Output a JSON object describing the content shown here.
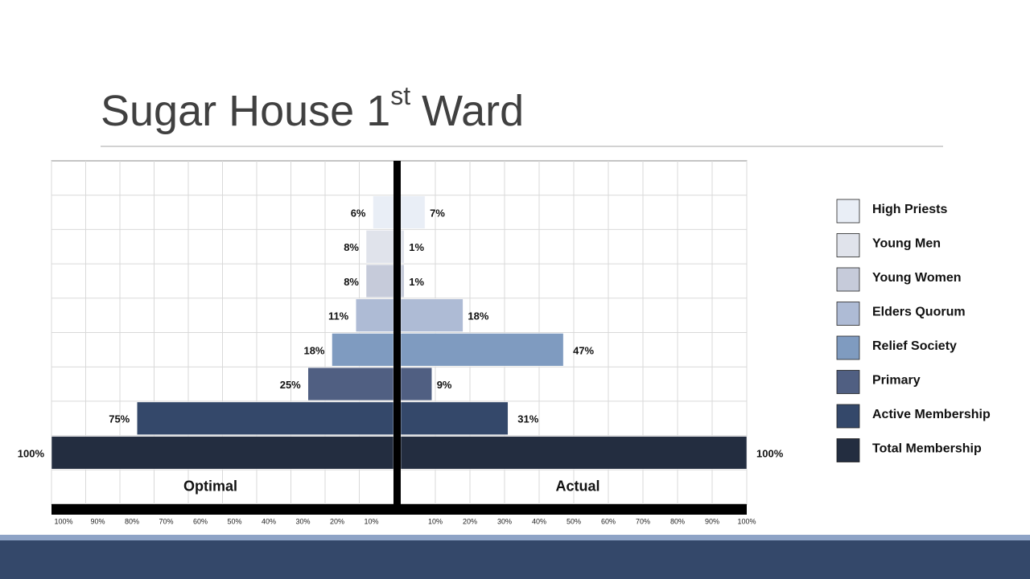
{
  "chart_data": {
    "type": "butterfly",
    "title": {
      "text": "Sugar House 1",
      "superscript": "st",
      "suffix": "Ward"
    },
    "categories": [
      "High Priests",
      "Young Men",
      "Young Women",
      "Elders Quorum",
      "Relief Society",
      "Primary",
      "Active Membership",
      "Total Membership"
    ],
    "colors": [
      "#e9eef6",
      "#e0e3eb",
      "#c6cbda",
      "#aebbd5",
      "#7f9bc0",
      "#505f82",
      "#34486a",
      "#232d40"
    ],
    "series": [
      {
        "name": "Optimal",
        "side": "left",
        "values": [
          6,
          8,
          8,
          11,
          18,
          25,
          75,
          100
        ],
        "value_labels": [
          "6%",
          "8%",
          "8%",
          "11%",
          "18%",
          "25%",
          "75%",
          "100%"
        ]
      },
      {
        "name": "Actual",
        "side": "right",
        "values": [
          7,
          1,
          1,
          18,
          47,
          9,
          31,
          100
        ],
        "value_labels": [
          "7%",
          "1%",
          "1%",
          "18%",
          "47%",
          "9%",
          "31%",
          "100%"
        ]
      }
    ],
    "xlim": [
      0,
      100
    ],
    "xticks": [
      {
        "value": 10,
        "label": "10%"
      },
      {
        "value": 20,
        "label": "20%"
      },
      {
        "value": 30,
        "label": "30%"
      },
      {
        "value": 40,
        "label": "40%"
      },
      {
        "value": 50,
        "label": "50%"
      },
      {
        "value": 60,
        "label": "60%"
      },
      {
        "value": 70,
        "label": "70%"
      },
      {
        "value": 80,
        "label": "80%"
      },
      {
        "value": 90,
        "label": "90%"
      },
      {
        "value": 100,
        "label": "100%"
      }
    ],
    "grid": true
  }
}
